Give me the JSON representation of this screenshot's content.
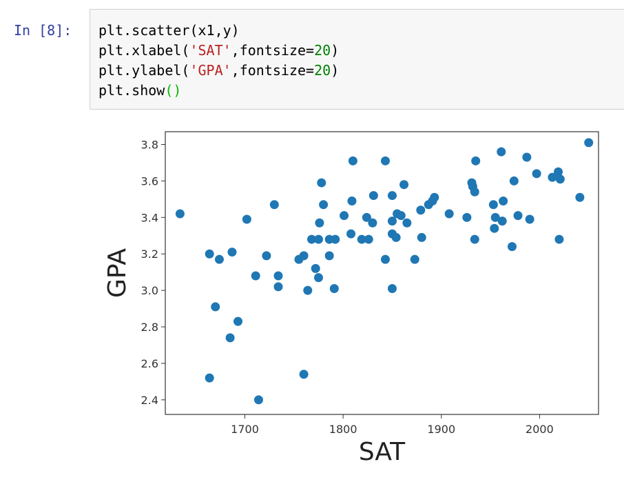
{
  "cell": {
    "prompt": "In [8]:",
    "code": {
      "line1": {
        "fn": "plt.scatter",
        "args": "(x1,y)"
      },
      "line2": {
        "fn": "plt.xlabel(",
        "str": "'SAT'",
        "mid": ",fontsize=",
        "num": "20",
        "end": ")"
      },
      "line3": {
        "fn": "plt.ylabel(",
        "str": "'GPA'",
        "mid": ",fontsize=",
        "num": "20",
        "end": ")"
      },
      "line4": {
        "fn": "plt.show",
        "parens": "()"
      }
    }
  },
  "colors": {
    "marker": "#1f77b4",
    "prompt": "#303f9f",
    "string": "#ba2121",
    "number": "#008000"
  },
  "chart_data": {
    "type": "scatter",
    "xlabel": "SAT",
    "ylabel": "GPA",
    "xlim": [
      1619,
      2060
    ],
    "ylim": [
      2.32,
      3.87
    ],
    "xticks": [
      1700,
      1800,
      1900,
      2000
    ],
    "yticks": [
      2.4,
      2.6,
      2.8,
      3.0,
      3.2,
      3.4,
      3.6,
      3.8
    ],
    "grid": false,
    "points": [
      [
        1634,
        3.42
      ],
      [
        1664,
        3.2
      ],
      [
        1664,
        2.52
      ],
      [
        1670,
        2.91
      ],
      [
        1674,
        3.17
      ],
      [
        1685,
        2.74
      ],
      [
        1687,
        3.21
      ],
      [
        1693,
        2.83
      ],
      [
        1702,
        3.39
      ],
      [
        1711,
        3.08
      ],
      [
        1714,
        2.4
      ],
      [
        1722,
        3.19
      ],
      [
        1730,
        3.47
      ],
      [
        1734,
        3.08
      ],
      [
        1734,
        3.02
      ],
      [
        1755,
        3.17
      ],
      [
        1760,
        3.19
      ],
      [
        1760,
        2.54
      ],
      [
        1764,
        3.0
      ],
      [
        1768,
        3.28
      ],
      [
        1772,
        3.12
      ],
      [
        1775,
        3.07
      ],
      [
        1775,
        3.28
      ],
      [
        1776,
        3.37
      ],
      [
        1778,
        3.59
      ],
      [
        1780,
        3.47
      ],
      [
        1786,
        3.19
      ],
      [
        1786,
        3.28
      ],
      [
        1791,
        3.01
      ],
      [
        1792,
        3.28
      ],
      [
        1801,
        3.41
      ],
      [
        1808,
        3.31
      ],
      [
        1809,
        3.49
      ],
      [
        1810,
        3.71
      ],
      [
        1819,
        3.28
      ],
      [
        1824,
        3.4
      ],
      [
        1826,
        3.28
      ],
      [
        1830,
        3.37
      ],
      [
        1831,
        3.52
      ],
      [
        1843,
        3.71
      ],
      [
        1843,
        3.17
      ],
      [
        1850,
        3.52
      ],
      [
        1850,
        3.38
      ],
      [
        1850,
        3.31
      ],
      [
        1850,
        3.01
      ],
      [
        1854,
        3.29
      ],
      [
        1855,
        3.42
      ],
      [
        1859,
        3.41
      ],
      [
        1862,
        3.58
      ],
      [
        1865,
        3.37
      ],
      [
        1873,
        3.17
      ],
      [
        1879,
        3.44
      ],
      [
        1880,
        3.29
      ],
      [
        1887,
        3.47
      ],
      [
        1891,
        3.49
      ],
      [
        1893,
        3.51
      ],
      [
        1908,
        3.42
      ],
      [
        1926,
        3.4
      ],
      [
        1931,
        3.59
      ],
      [
        1932,
        3.57
      ],
      [
        1934,
        3.28
      ],
      [
        1934,
        3.54
      ],
      [
        1935,
        3.71
      ],
      [
        1953,
        3.47
      ],
      [
        1954,
        3.34
      ],
      [
        1955,
        3.4
      ],
      [
        1961,
        3.76
      ],
      [
        1962,
        3.38
      ],
      [
        1963,
        3.49
      ],
      [
        1972,
        3.24
      ],
      [
        1974,
        3.6
      ],
      [
        1978,
        3.41
      ],
      [
        1987,
        3.73
      ],
      [
        1990,
        3.39
      ],
      [
        1997,
        3.64
      ],
      [
        2013,
        3.62
      ],
      [
        2019,
        3.65
      ],
      [
        2020,
        3.28
      ],
      [
        2021,
        3.61
      ],
      [
        2041,
        3.51
      ],
      [
        2050,
        3.81
      ]
    ]
  }
}
